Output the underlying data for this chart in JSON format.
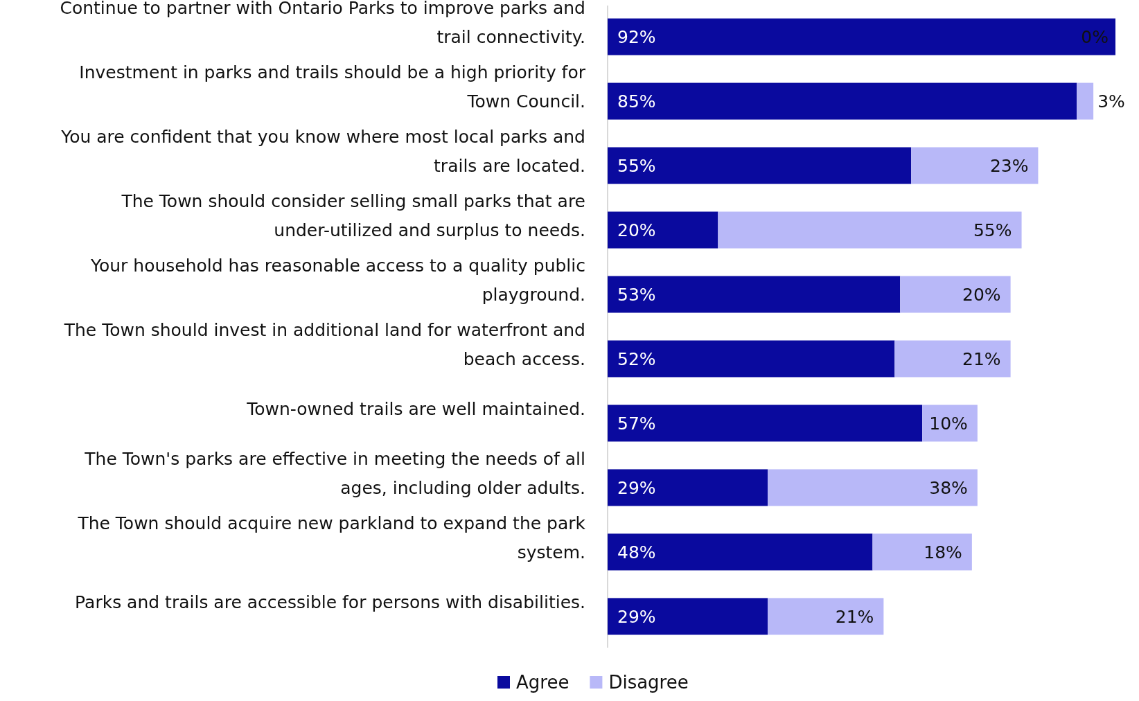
{
  "chart_data": {
    "type": "bar",
    "orientation": "horizontal",
    "stacked": true,
    "categories": [
      "Continue to partner with Ontario Parks to improve parks and trail connectivity.",
      "Investment in parks and trails should be a high priority for Town Council.",
      "You are confident that you know where most local parks and trails are located.",
      "The Town should consider selling small parks that are under-utilized and surplus to needs.",
      "Your household has reasonable access to a quality public playground.",
      "The Town should invest in additional land for waterfront and beach access.",
      "Town-owned trails are well maintained.",
      "The Town's parks are effective in meeting the needs of all ages, including older adults.",
      "The Town should acquire new parkland to expand the park system.",
      "Parks and trails are accessible for persons with disabilities."
    ],
    "series": [
      {
        "name": "Agree",
        "color": "#0a0a9e",
        "values": [
          92,
          85,
          55,
          20,
          53,
          52,
          57,
          29,
          48,
          29
        ],
        "value_labels": [
          "92%",
          "85%",
          "55%",
          "20%",
          "53%",
          "52%",
          "57%",
          "29%",
          "48%",
          "29%"
        ]
      },
      {
        "name": "Disagree",
        "color": "#b8b8f8",
        "values": [
          0,
          3,
          23,
          55,
          20,
          21,
          10,
          38,
          18,
          21
        ],
        "value_labels": [
          "0%",
          "3%",
          "23%",
          "55%",
          "20%",
          "21%",
          "10%",
          "38%",
          "18%",
          "21%"
        ]
      }
    ],
    "xlim": [
      0,
      92
    ],
    "legend": "bottom"
  }
}
